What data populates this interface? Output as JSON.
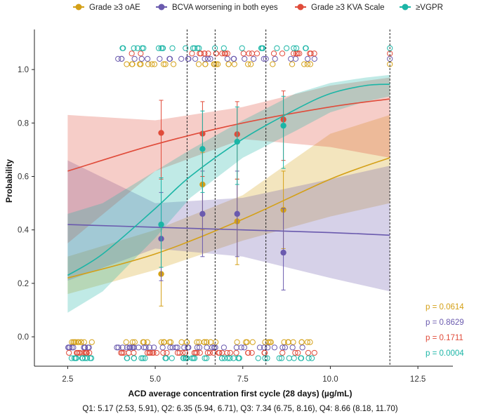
{
  "chart_data": {
    "type": "logistic-regression-scatter",
    "xlabel": "ACD average concentration first cycle (28 days) (µg/mL)",
    "ylabel": "Probability",
    "xlim": [
      1.55,
      13.5
    ],
    "ylim": [
      -0.11,
      1.15
    ],
    "xticks": [
      2.5,
      5.0,
      7.5,
      10.0,
      12.5
    ],
    "xtick_labels": [
      "2.5",
      "5.0",
      "7.5",
      "10.0",
      "12.5"
    ],
    "yticks": [
      0.0,
      0.2,
      0.4,
      0.6,
      0.8,
      1.0
    ],
    "ytick_labels": [
      "0.0",
      "0.2",
      "0.4",
      "0.6",
      "0.8",
      "1.0"
    ],
    "quartile_cutoffs": [
      5.91,
      6.71,
      8.16,
      11.7
    ],
    "quartile_note": "Q1: 5.17 (2.53, 5.91), Q2: 6.35 (5.94, 6.71), Q3: 7.34 (6.75, 8.16), Q4: 8.66 (8.18, 11.70)",
    "series": [
      {
        "name": "Grade ≥3 oAE",
        "color": "#D4A017",
        "p_value": "p = 0.0614",
        "fit": {
          "x": [
            2.5,
            5,
            7.5,
            10,
            11.7
          ],
          "y": [
            0.22,
            0.31,
            0.44,
            0.59,
            0.67
          ]
        },
        "ci_lower": [
          0.16,
          0.25,
          0.36,
          0.45,
          0.5
        ],
        "ci_upper": [
          0.3,
          0.4,
          0.53,
          0.76,
          0.83
        ],
        "quartile_points": [
          {
            "x": 5.17,
            "y": 0.235,
            "lo": 0.115,
            "hi": 0.36
          },
          {
            "x": 6.35,
            "y": 0.57,
            "lo": 0.4,
            "hi": 0.69
          },
          {
            "x": 7.34,
            "y": 0.432,
            "lo": 0.27,
            "hi": 0.59
          },
          {
            "x": 8.66,
            "y": 0.475,
            "lo": 0.33,
            "hi": 0.62
          }
        ],
        "row_top": 1.02,
        "row_bottom": -0.02
      },
      {
        "name": "BCVA worsening in both eyes",
        "color": "#6A5AAE",
        "p_value": "p = 0.8629",
        "fit": {
          "x": [
            2.5,
            5,
            7.5,
            10,
            11.7
          ],
          "y": [
            0.42,
            0.41,
            0.4,
            0.39,
            0.38
          ]
        },
        "ci_lower": [
          0.21,
          0.33,
          0.3,
          0.22,
          0.17
        ],
        "ci_upper": [
          0.66,
          0.5,
          0.52,
          0.59,
          0.64
        ],
        "quartile_points": [
          {
            "x": 5.17,
            "y": 0.367,
            "lo": 0.21,
            "hi": 0.54
          },
          {
            "x": 6.35,
            "y": 0.46,
            "lo": 0.3,
            "hi": 0.62
          },
          {
            "x": 7.34,
            "y": 0.46,
            "lo": 0.3,
            "hi": 0.62
          },
          {
            "x": 8.66,
            "y": 0.315,
            "lo": 0.175,
            "hi": 0.48
          }
        ],
        "row_top": 1.04,
        "row_bottom": -0.04
      },
      {
        "name": "Grade ≥3 KVA Scale",
        "color": "#E04B3A",
        "p_value": "p = 0.1711",
        "fit": {
          "x": [
            2.5,
            5,
            7.5,
            10,
            11.7
          ],
          "y": [
            0.62,
            0.72,
            0.8,
            0.86,
            0.89
          ]
        },
        "ci_lower": [
          0.35,
          0.62,
          0.74,
          0.71,
          0.67
        ],
        "ci_upper": [
          0.83,
          0.81,
          0.86,
          0.94,
          0.97
        ],
        "quartile_points": [
          {
            "x": 5.17,
            "y": 0.763,
            "lo": 0.59,
            "hi": 0.885
          },
          {
            "x": 6.35,
            "y": 0.76,
            "lo": 0.6,
            "hi": 0.88
          },
          {
            "x": 7.34,
            "y": 0.758,
            "lo": 0.59,
            "hi": 0.88
          },
          {
            "x": 8.66,
            "y": 0.813,
            "lo": 0.66,
            "hi": 0.92
          }
        ],
        "row_top": 1.06,
        "row_bottom": -0.06
      },
      {
        "name": "≥VGPR",
        "color": "#1BB5A6",
        "p_value": "p = 0.0004",
        "fit": {
          "x": [
            2.5,
            3.5,
            5,
            6,
            7.5,
            9,
            10,
            11,
            11.7
          ],
          "y": [
            0.23,
            0.31,
            0.48,
            0.6,
            0.74,
            0.85,
            0.91,
            0.94,
            0.945
          ]
        },
        "ci_lower": [
          0.09,
          0.17,
          0.37,
          0.52,
          0.67,
          0.77,
          0.84,
          0.88,
          0.9
        ],
        "ci_upper": [
          0.46,
          0.5,
          0.62,
          0.7,
          0.81,
          0.91,
          0.95,
          0.97,
          0.98
        ],
        "quartile_points": [
          {
            "x": 5.17,
            "y": 0.42,
            "lo": 0.26,
            "hi": 0.595
          },
          {
            "x": 6.35,
            "y": 0.703,
            "lo": 0.54,
            "hi": 0.845
          },
          {
            "x": 7.34,
            "y": 0.73,
            "lo": 0.57,
            "hi": 0.86
          },
          {
            "x": 8.66,
            "y": 0.79,
            "lo": 0.63,
            "hi": 0.9
          }
        ],
        "row_top": 1.08,
        "row_bottom": -0.08
      }
    ]
  }
}
